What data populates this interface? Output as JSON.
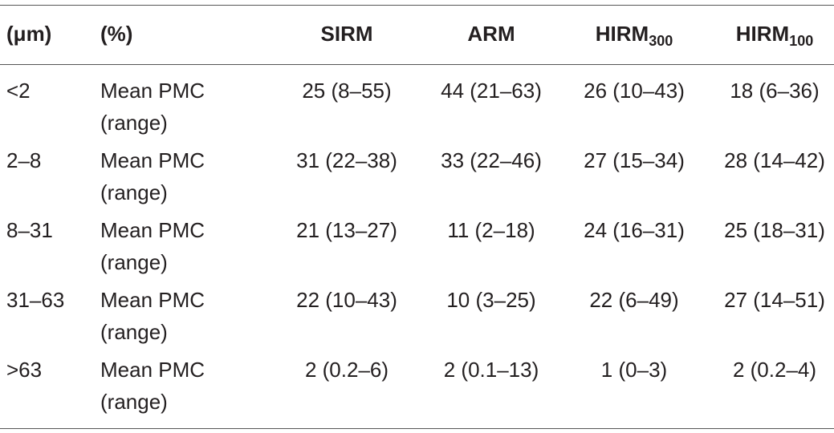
{
  "header": [
    "(μm)",
    "(%)",
    "SIRM",
    "ARM",
    {
      "main": "HIRM",
      "sub": "300"
    },
    {
      "main": "HIRM",
      "sub": "100"
    }
  ],
  "rows": [
    [
      "<2",
      [
        "Mean PMC",
        "(range)"
      ],
      "25 (8–55)",
      "44 (21–63)",
      "26 (10–43)",
      "18 (6–36)"
    ],
    [
      "2–8",
      [
        "Mean PMC",
        "(range)"
      ],
      "31 (22–38)",
      "33 (22–46)",
      "27 (15–34)",
      "28 (14–42)"
    ],
    [
      "8–31",
      [
        "Mean PMC",
        "(range)"
      ],
      "21 (13–27)",
      "11 (2–18)",
      "24 (16–31)",
      "25 (18–31)"
    ],
    [
      "31–63",
      [
        "Mean PMC",
        "(range)"
      ],
      "22 (10–43)",
      "10 (3–25)",
      "22 (6–49)",
      "27 (14–51)"
    ],
    [
      ">63",
      [
        "Mean PMC",
        "(range)"
      ],
      "2 (0.2–6)",
      "2 (0.1–13)",
      "1 (0–3)",
      "2 (0.2–4)"
    ]
  ]
}
